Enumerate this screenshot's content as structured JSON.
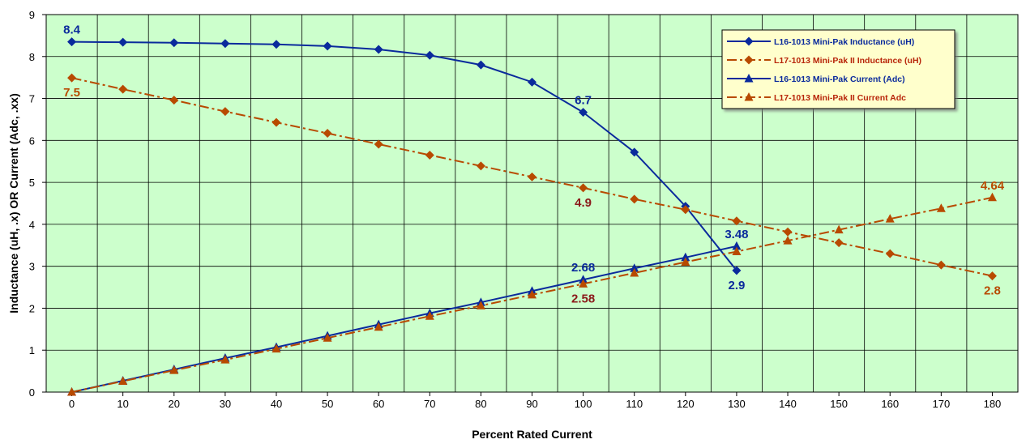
{
  "chart_data": {
    "type": "line",
    "title": "",
    "xlabel": "Percent Rated Current",
    "ylabel": "Inductance (uH, .x) OR Current (Adc, .xx)",
    "xlim": [
      0,
      180
    ],
    "ylim": [
      0,
      9
    ],
    "x_ticks": [
      "0",
      "10",
      "20",
      "30",
      "40",
      "50",
      "60",
      "70",
      "80",
      "90",
      "100",
      "110",
      "120",
      "130",
      "140",
      "150",
      "160",
      "170",
      "180"
    ],
    "y_ticks": [
      "0",
      "1",
      "2",
      "3",
      "4",
      "5",
      "6",
      "7",
      "8",
      "9"
    ],
    "grid": true,
    "plot_background": "#CCFFCC",
    "legend_position": "top-right",
    "series": [
      {
        "name": "L16-1013 Mini-Pak Inductance (uH)",
        "color": "#0A2A9C",
        "line_style": "solid",
        "marker": "diamond",
        "x": [
          0,
          10,
          20,
          30,
          40,
          50,
          60,
          70,
          80,
          90,
          100,
          110,
          120,
          130
        ],
        "values": [
          8.35,
          8.34,
          8.33,
          8.31,
          8.29,
          8.25,
          8.17,
          8.03,
          7.8,
          7.39,
          6.67,
          5.72,
          4.43,
          2.9
        ]
      },
      {
        "name": "L17-1013 Mini-Pak II  Inductance (uH)",
        "color": "#B84A00",
        "line_style": "dash-dot",
        "marker": "diamond",
        "x": [
          0,
          10,
          20,
          30,
          40,
          50,
          60,
          70,
          80,
          90,
          100,
          110,
          120,
          130,
          140,
          150,
          160,
          170,
          180
        ],
        "values": [
          7.49,
          7.22,
          6.96,
          6.69,
          6.43,
          6.17,
          5.91,
          5.65,
          5.39,
          5.13,
          4.87,
          4.6,
          4.35,
          4.08,
          3.82,
          3.56,
          3.3,
          3.03,
          2.77
        ]
      },
      {
        "name": "L16-1013 Mini-Pak Current (Adc)",
        "color": "#0A2A9C",
        "line_style": "solid",
        "marker": "triangle",
        "x": [
          0,
          10,
          20,
          30,
          40,
          50,
          60,
          70,
          80,
          90,
          100,
          110,
          120,
          130
        ],
        "values": [
          0,
          0.27,
          0.54,
          0.81,
          1.07,
          1.34,
          1.61,
          1.88,
          2.14,
          2.41,
          2.68,
          2.95,
          3.21,
          3.48
        ]
      },
      {
        "name": "L17-1013 Mini-Pak II Current Adc",
        "color": "#B84A00",
        "line_style": "dash-dot",
        "marker": "triangle",
        "x": [
          0,
          10,
          20,
          30,
          40,
          50,
          60,
          70,
          80,
          90,
          100,
          110,
          120,
          130,
          140,
          150,
          160,
          170,
          180
        ],
        "values": [
          0,
          0.26,
          0.52,
          0.77,
          1.03,
          1.29,
          1.55,
          1.81,
          2.06,
          2.32,
          2.58,
          2.84,
          3.1,
          3.35,
          3.61,
          3.87,
          4.13,
          4.38,
          4.64
        ]
      }
    ],
    "annotations": [
      {
        "text": "8.4",
        "x": 0,
        "y": 8.35,
        "color": "#0A2A9C",
        "anchor": "above"
      },
      {
        "text": "7.5",
        "x": 0,
        "y": 7.49,
        "color": "#B84A00",
        "anchor": "below"
      },
      {
        "text": "6.7",
        "x": 100,
        "y": 6.67,
        "color": "#0A2A9C",
        "anchor": "above"
      },
      {
        "text": "4.9",
        "x": 100,
        "y": 4.87,
        "color": "#8B1A1A",
        "anchor": "below"
      },
      {
        "text": "2.68",
        "x": 100,
        "y": 2.68,
        "color": "#0A2A9C",
        "anchor": "above"
      },
      {
        "text": "2.58",
        "x": 100,
        "y": 2.58,
        "color": "#8B1A1A",
        "anchor": "below"
      },
      {
        "text": "3.48",
        "x": 130,
        "y": 3.48,
        "color": "#0A2A9C",
        "anchor": "above"
      },
      {
        "text": "2.9",
        "x": 130,
        "y": 2.9,
        "color": "#0A2A9C",
        "anchor": "below"
      },
      {
        "text": "4.64",
        "x": 180,
        "y": 4.64,
        "color": "#B84A00",
        "anchor": "above"
      },
      {
        "text": "2.8",
        "x": 180,
        "y": 2.77,
        "color": "#B84A00",
        "anchor": "below"
      }
    ]
  }
}
